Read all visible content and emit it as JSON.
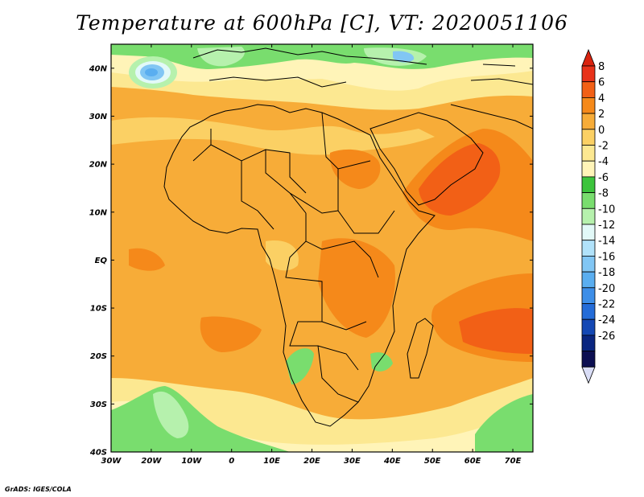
{
  "title": "Temperature at 600hPa [C], VT: 2020051106",
  "credit": "GrADS: IGES/COLA",
  "map": {
    "x_ticks": [
      "30W",
      "20W",
      "10W",
      "0",
      "10E",
      "20E",
      "30E",
      "40E",
      "50E",
      "60E",
      "70E"
    ],
    "y_ticks": [
      "40N",
      "30N",
      "20N",
      "10N",
      "EQ",
      "10S",
      "20S",
      "30S",
      "40S"
    ],
    "lon_range": [
      -30,
      75
    ],
    "lat_range": [
      -40,
      45
    ],
    "field": "Temperature at 600hPa",
    "units": "C"
  },
  "colorbar": {
    "labels": [
      "8",
      "6",
      "4",
      "2",
      "0",
      "-2",
      "-4",
      "-6",
      "-8",
      "-10",
      "-12",
      "-14",
      "-16",
      "-18",
      "-20",
      "-22",
      "-24",
      "-26"
    ],
    "colors": [
      "#e8321a",
      "#f26016",
      "#f5891a",
      "#f7ac38",
      "#fbd064",
      "#fce891",
      "#fff4b8",
      "#3cc43c",
      "#79dd6e",
      "#b6f1ad",
      "#e2f9f8",
      "#b1e2fa",
      "#81c6f4",
      "#5aaef0",
      "#3d8ee8",
      "#246cd8",
      "#1448b4",
      "#0a2680",
      "#0c0f52"
    ],
    "top_color": "#d9230f",
    "bottom_color": "#d9ddf6"
  }
}
